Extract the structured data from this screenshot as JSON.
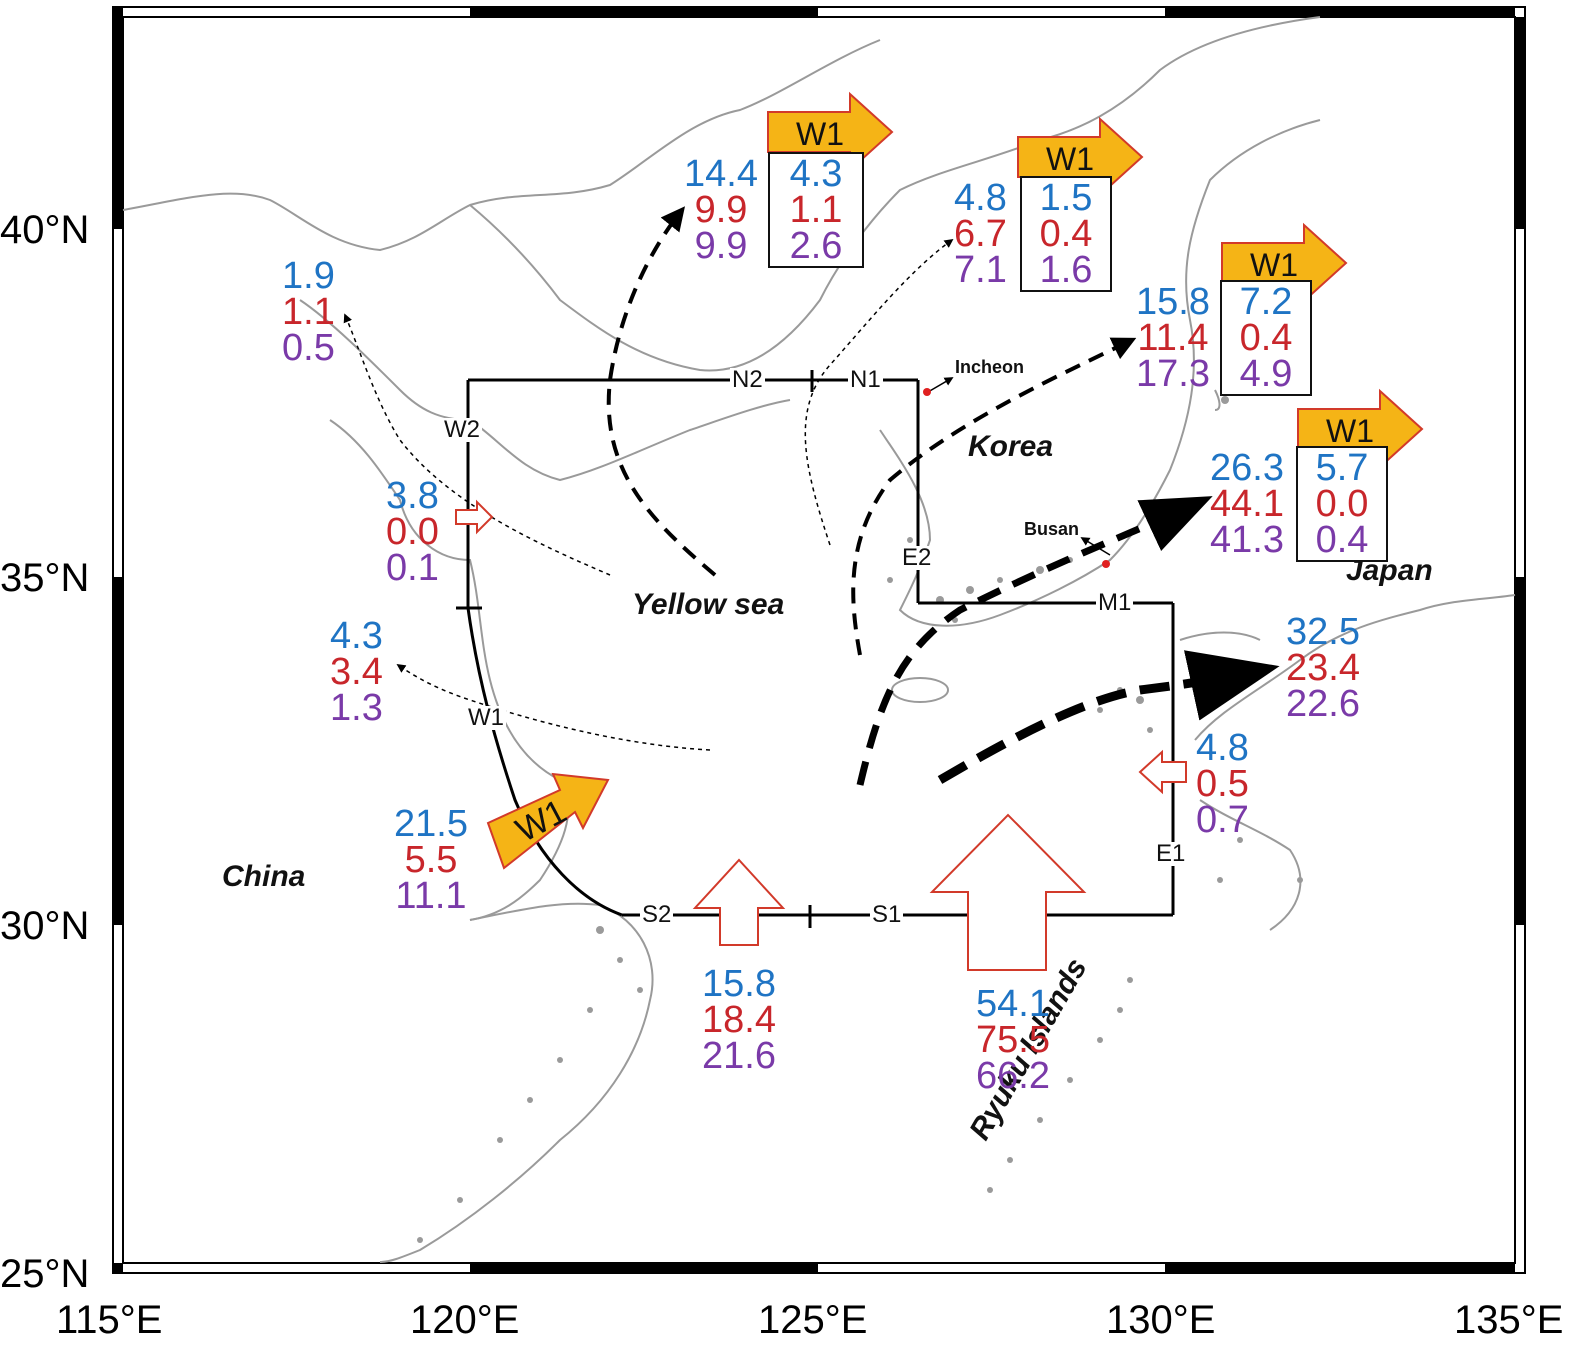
{
  "axes": {
    "lat": [
      "40°N",
      "35°N",
      "30°N",
      "25°N"
    ],
    "lon": [
      "115°E",
      "120°E",
      "125°E",
      "130°E",
      "135°E"
    ]
  },
  "places": {
    "china": "China",
    "korea": "Korea",
    "japan": "Japan",
    "yellow_sea": "Yellow sea",
    "ryuku": "Ryuku Islands",
    "incheon": "Incheon",
    "busan": "Busan"
  },
  "sections": {
    "n1": "N1",
    "n2": "N2",
    "w1": "W1",
    "w2": "W2",
    "s1": "S1",
    "s2": "S2",
    "e1": "E1",
    "e2": "E2",
    "m1": "M1"
  },
  "wind_label": "W1",
  "colors": {
    "blue": "#1f74c4",
    "red": "#c8262b",
    "purple": "#7a3aa8",
    "wind_arrow": "#f5b416",
    "arrow_outline": "#d23a2a"
  },
  "transports": {
    "bohai": [
      "1.9",
      "1.1",
      "0.5"
    ],
    "w2": [
      "3.8",
      "0.0",
      "0.1"
    ],
    "w1_upper": [
      "4.3",
      "3.4",
      "1.3"
    ],
    "w1_wind": [
      "21.5",
      "5.5",
      "11.1"
    ],
    "s2": [
      "15.8",
      "18.4",
      "21.6"
    ],
    "s1": [
      "54.1",
      "75.5",
      "66.2"
    ],
    "e1": [
      "4.8",
      "0.5",
      "0.7"
    ],
    "japan_south": [
      "32.5",
      "23.4",
      "22.6"
    ]
  },
  "boxes": {
    "yellow_north": {
      "left": [
        "14.4",
        "9.9",
        "9.9"
      ],
      "right": [
        "4.3",
        "1.1",
        "2.6"
      ]
    },
    "korea_west": {
      "left": [
        "4.8",
        "6.7",
        "7.1"
      ],
      "right": [
        "1.5",
        "0.4",
        "1.6"
      ]
    },
    "korea_mid": {
      "left": [
        "15.8",
        "11.4",
        "17.3"
      ],
      "right": [
        "7.2",
        "0.4",
        "4.9"
      ]
    },
    "tsushima": {
      "left": [
        "26.3",
        "44.1",
        "41.3"
      ],
      "right": [
        "5.7",
        "0.0",
        "0.4"
      ]
    }
  }
}
